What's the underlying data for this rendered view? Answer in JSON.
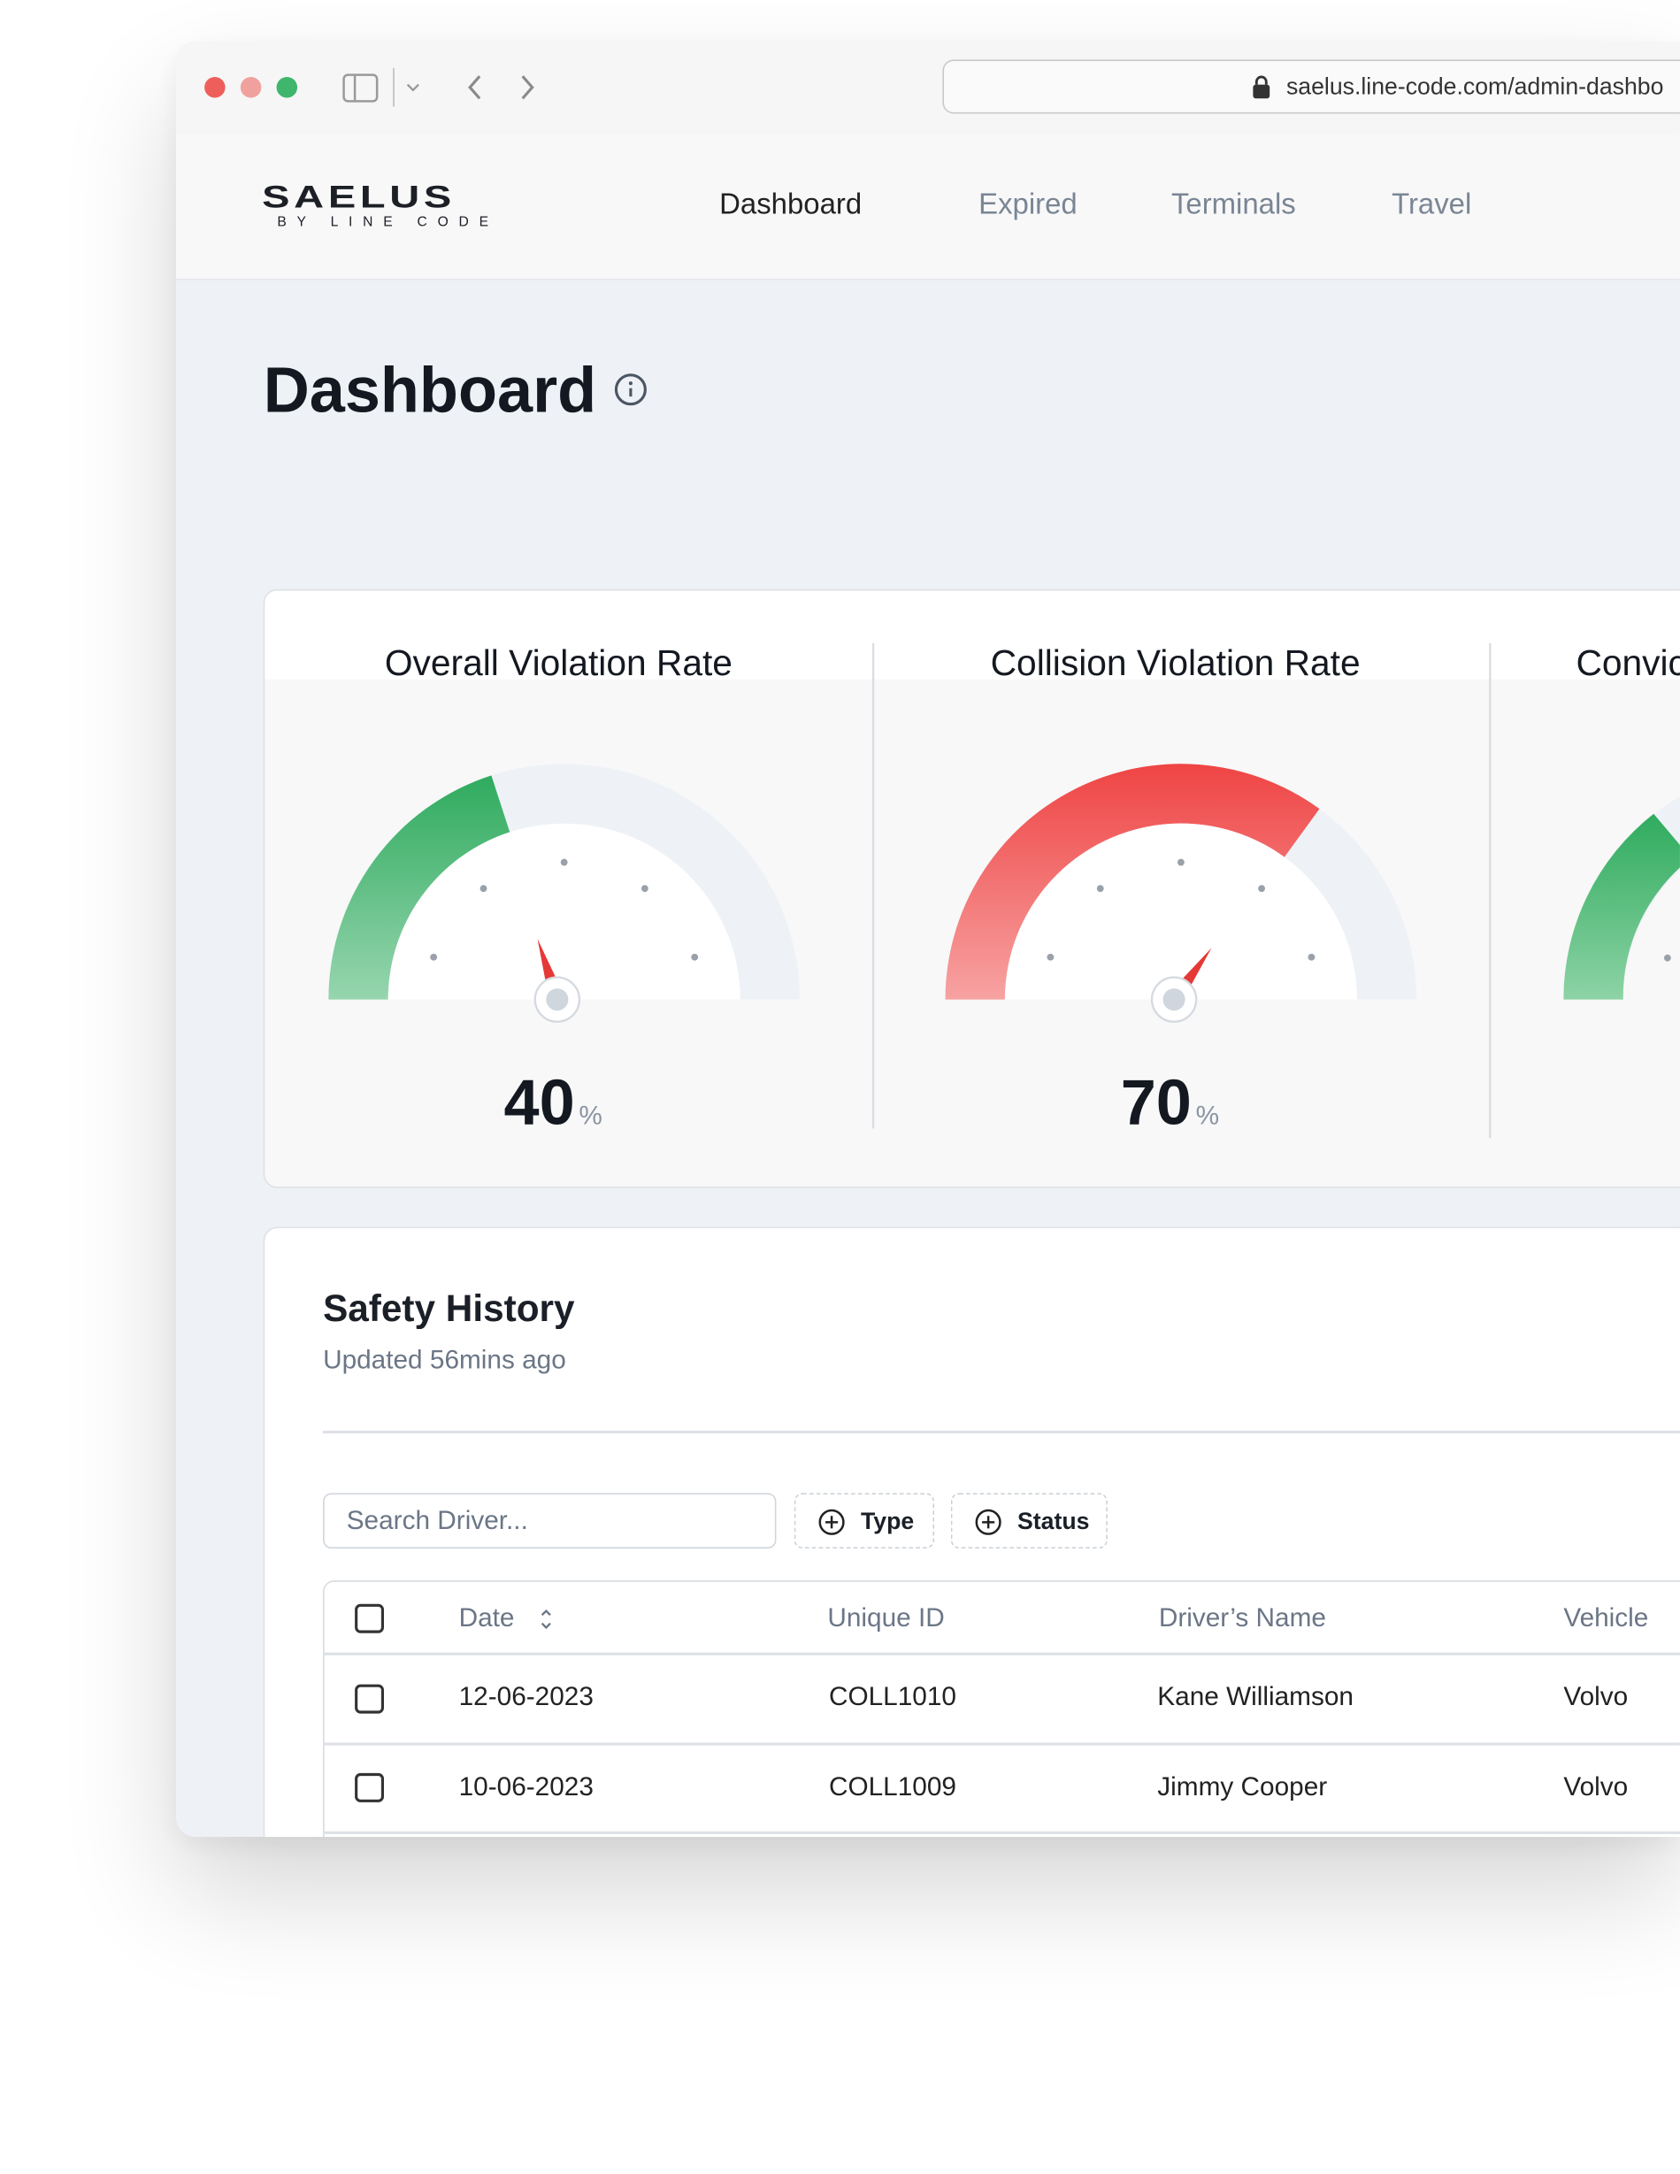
{
  "browser": {
    "url": "saelus.line-code.com/admin-dashbo"
  },
  "nav": {
    "logo": "SAELUS",
    "logo_tagline": "BY LINE CODE",
    "items": [
      "Dashboard",
      "Expired",
      "Terminals",
      "Travel"
    ]
  },
  "page_title": "Dashboard",
  "gauges": [
    {
      "title": "Overall Violation Rate",
      "value": 40,
      "unit": "%",
      "color": "#2fab5e"
    },
    {
      "title": "Collision Violation Rate",
      "value": 70,
      "unit": "%",
      "color": "#ef4444"
    },
    {
      "title": "Convic"
    }
  ],
  "safety_history": {
    "title": "Safety History",
    "subtitle": "Updated 56mins ago",
    "search_placeholder": "Search Driver...",
    "filters": [
      "Type",
      "Status"
    ],
    "table": {
      "headers": [
        "Date",
        "Unique ID",
        "Driver’s Name",
        "Vehicle"
      ],
      "rows": [
        [
          "12-06-2023",
          "COLL1010",
          "Kane Williamson",
          "Volvo"
        ],
        [
          "10-06-2023",
          "COLL1009",
          "Jimmy Cooper",
          "Volvo"
        ]
      ]
    }
  }
}
